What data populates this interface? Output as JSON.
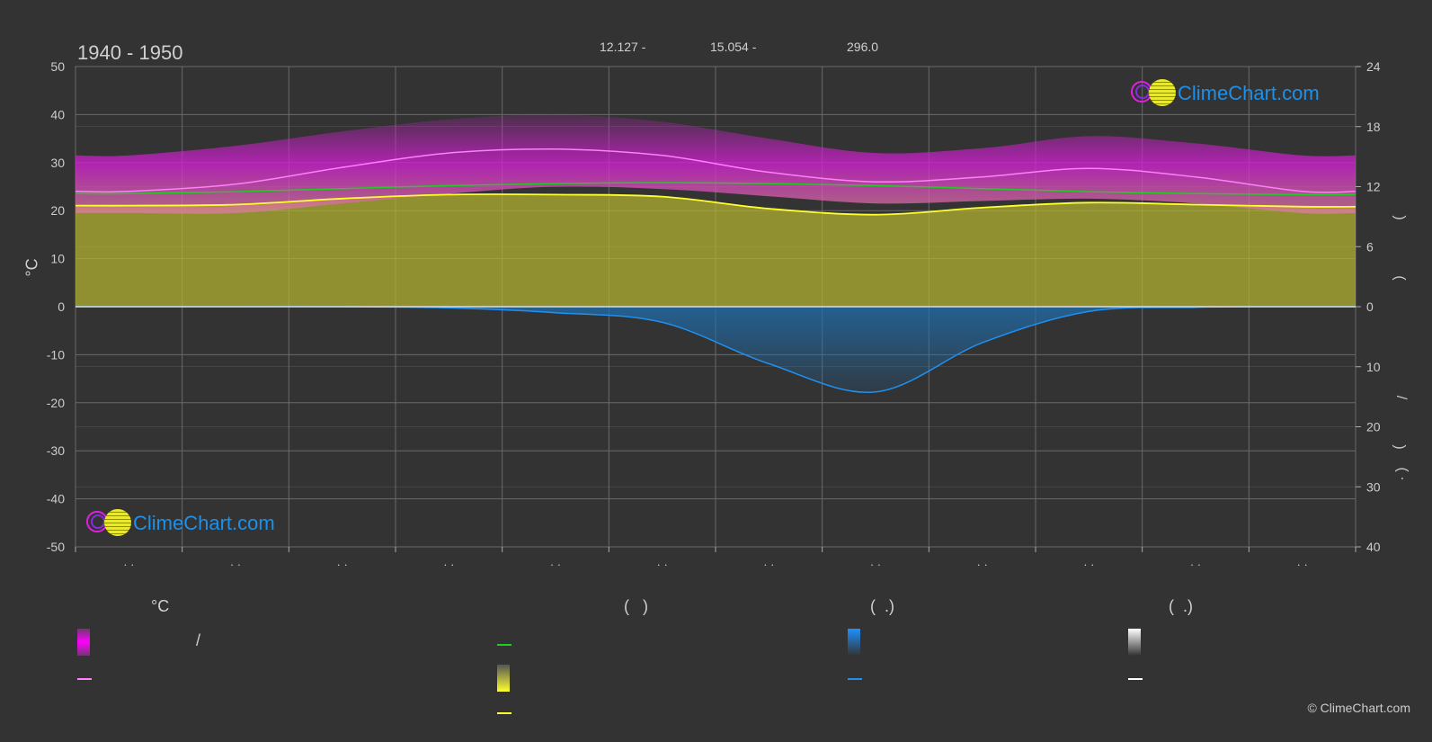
{
  "header": {
    "period": "1940 - 1950",
    "coord_1": "12.127 -",
    "coord_2": "15.054 -",
    "coord_3": "296.0"
  },
  "logo_text": "ClimeChart.com",
  "copyright": "© ClimeChart.com",
  "axes": {
    "left_unit": "°C",
    "right_paren_top_1": ")",
    "right_paren_top_2": "(",
    "right_slash": "/",
    "right_paren_bottom_1": ")",
    "right_paren_bottom_2": "( ·"
  },
  "legend": {
    "col1_header": "°C",
    "col1_slash": "/",
    "col2_header": "(   )",
    "col3_header": "(  .)",
    "col4_header": "(  .)"
  },
  "colors": {
    "background": "#333333",
    "temp_band": "#d020d0",
    "temp_mean_line": "#ff7fff",
    "daylight_line": "#22cc22",
    "sunshine_band": "#b8b830",
    "sunshine_line": "#ffff30",
    "precip_band": "#1e6fb0",
    "precip_line": "#2090f0",
    "snow": "#ffffff",
    "grid": "#6a6a6a"
  },
  "chart_data": {
    "type": "area",
    "title": "1940 - 1950",
    "x": [
      0,
      1,
      2,
      3,
      4,
      5,
      6,
      7,
      8,
      9,
      10,
      11
    ],
    "x_tick_labels": [
      "· ·",
      "· ·",
      "· ·",
      "· ·",
      "· ·",
      "· ·",
      "· ·",
      "· ·",
      "· ·",
      "· ·",
      "· ·",
      "· ·"
    ],
    "y_left": {
      "label": "°C",
      "ylim": [
        -50,
        50
      ],
      "ticks": [
        50,
        40,
        30,
        20,
        10,
        0,
        -10,
        -20,
        -30,
        -40,
        -50
      ]
    },
    "y_right_top": {
      "ylim": [
        0,
        24
      ],
      "ticks": [
        24,
        18,
        12,
        6,
        0
      ]
    },
    "y_right_bottom": {
      "ylim": [
        0,
        40
      ],
      "ticks": [
        0,
        10,
        20,
        30,
        40
      ]
    },
    "grid": true,
    "series": [
      {
        "values": [
          24.0,
          25.5,
          29.0,
          32.0,
          32.8,
          31.5,
          28.0,
          26.0,
          27.0,
          28.8,
          27.0,
          24.0
        ]
      },
      {
        "values": [
          31.5,
          33.5,
          36.5,
          39.0,
          40.0,
          38.5,
          35.0,
          32.0,
          33.0,
          35.5,
          34.0,
          31.5
        ]
      },
      {
        "values": [
          19.5,
          19.5,
          21.5,
          23.5,
          25.0,
          24.5,
          23.0,
          21.5,
          22.0,
          22.5,
          21.5,
          19.5
        ]
      },
      {
        "values": [
          11.3,
          11.5,
          11.8,
          12.1,
          12.3,
          12.4,
          12.3,
          12.1,
          11.8,
          11.5,
          11.3,
          11.2
        ]
      },
      {
        "values": [
          10.1,
          10.2,
          10.8,
          11.2,
          11.2,
          11.0,
          9.8,
          9.2,
          9.9,
          10.4,
          10.2,
          10.0
        ]
      },
      {
        "values": [
          0.0,
          0.0,
          0.0,
          0.2,
          1.0,
          2.6,
          9.5,
          14.2,
          6.0,
          0.8,
          0.1,
          0.0
        ]
      },
      {
        "values": [
          0,
          0,
          0,
          0,
          0,
          0,
          0,
          0,
          0,
          0,
          0,
          0
        ]
      }
    ]
  }
}
